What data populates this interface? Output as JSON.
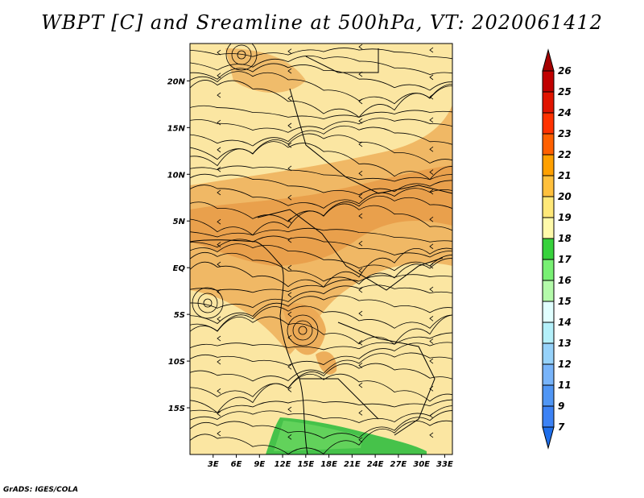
{
  "title": "WBPT [C] and Sreamline at 500hPa, VT: 2020061412",
  "footer": "GrADS: IGES/COLA",
  "map": {
    "lon_range": [
      0,
      34
    ],
    "lat_range": [
      -20,
      24
    ],
    "lon_ticks": [
      "3E",
      "6E",
      "9E",
      "12E",
      "15E",
      "18E",
      "21E",
      "24E",
      "27E",
      "30E",
      "33E"
    ],
    "lat_ticks": [
      "20N",
      "15N",
      "10N",
      "5N",
      "EQ",
      "5S",
      "10S",
      "15S"
    ]
  },
  "colorbar": {
    "levels": [
      "7",
      "9",
      "11",
      "12",
      "13",
      "14",
      "15",
      "16",
      "17",
      "18",
      "19",
      "20",
      "21",
      "22",
      "23",
      "24",
      "25",
      "26"
    ],
    "colors": [
      "#1e6eeb",
      "#3c82f5",
      "#5096f5",
      "#78b4fa",
      "#96d2fa",
      "#b4f0fa",
      "#e1ffff",
      "#b4faaa",
      "#78f073",
      "#37d23c",
      "#fffaaa",
      "#ffe878",
      "#ffc03c",
      "#ffa000",
      "#ff6000",
      "#ff3200",
      "#e11400",
      "#c00000",
      "#a50000"
    ]
  }
}
